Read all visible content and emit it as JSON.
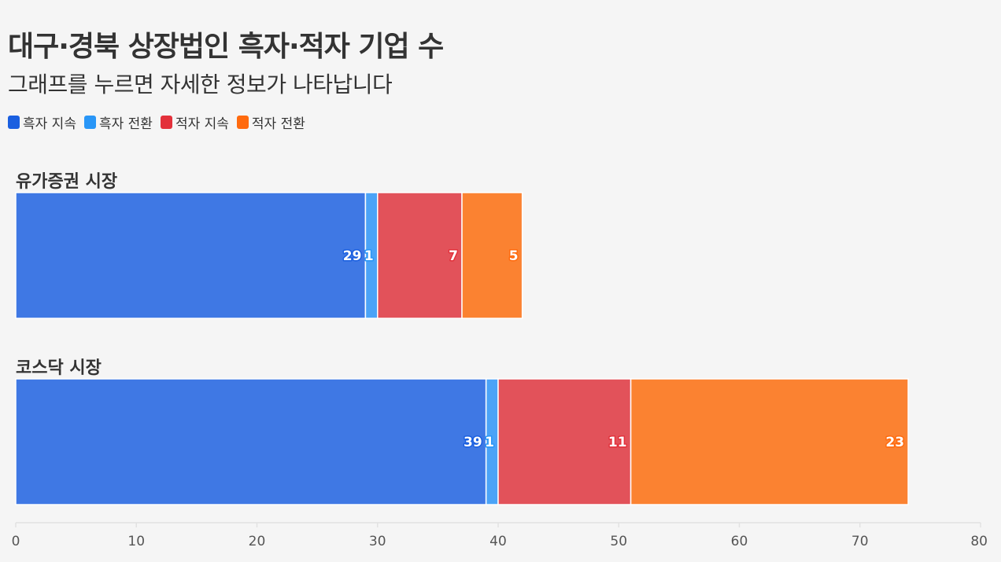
{
  "chart_data": {
    "type": "bar",
    "orientation": "horizontal",
    "stacked": true,
    "title": "대구·경북 상장법인 흑자·적자 기업 수",
    "subtitle": "그래프를 누르면 자세한 정보가 나타납니다",
    "categories": [
      "유가증권 시장",
      "코스닥 시장"
    ],
    "series": [
      {
        "name": "흑자 지속",
        "color": "#3f78e4",
        "legend_color": "#1a5fe0",
        "values": [
          29,
          39
        ]
      },
      {
        "name": "흑자 전환",
        "color": "#4ba3f7",
        "legend_color": "#2996f7",
        "values": [
          1,
          1
        ]
      },
      {
        "name": "적자 지속",
        "color": "#e2525a",
        "legend_color": "#e3313b",
        "values": [
          7,
          11
        ]
      },
      {
        "name": "적자 전환",
        "color": "#fb8231",
        "legend_color": "#ff6a0e",
        "values": [
          5,
          23
        ]
      }
    ],
    "xlim": [
      0,
      80
    ],
    "xticks": [
      0,
      10,
      20,
      30,
      40,
      50,
      60,
      70,
      80
    ],
    "legend_position": "top-left",
    "grid": false,
    "data_labels": true
  }
}
